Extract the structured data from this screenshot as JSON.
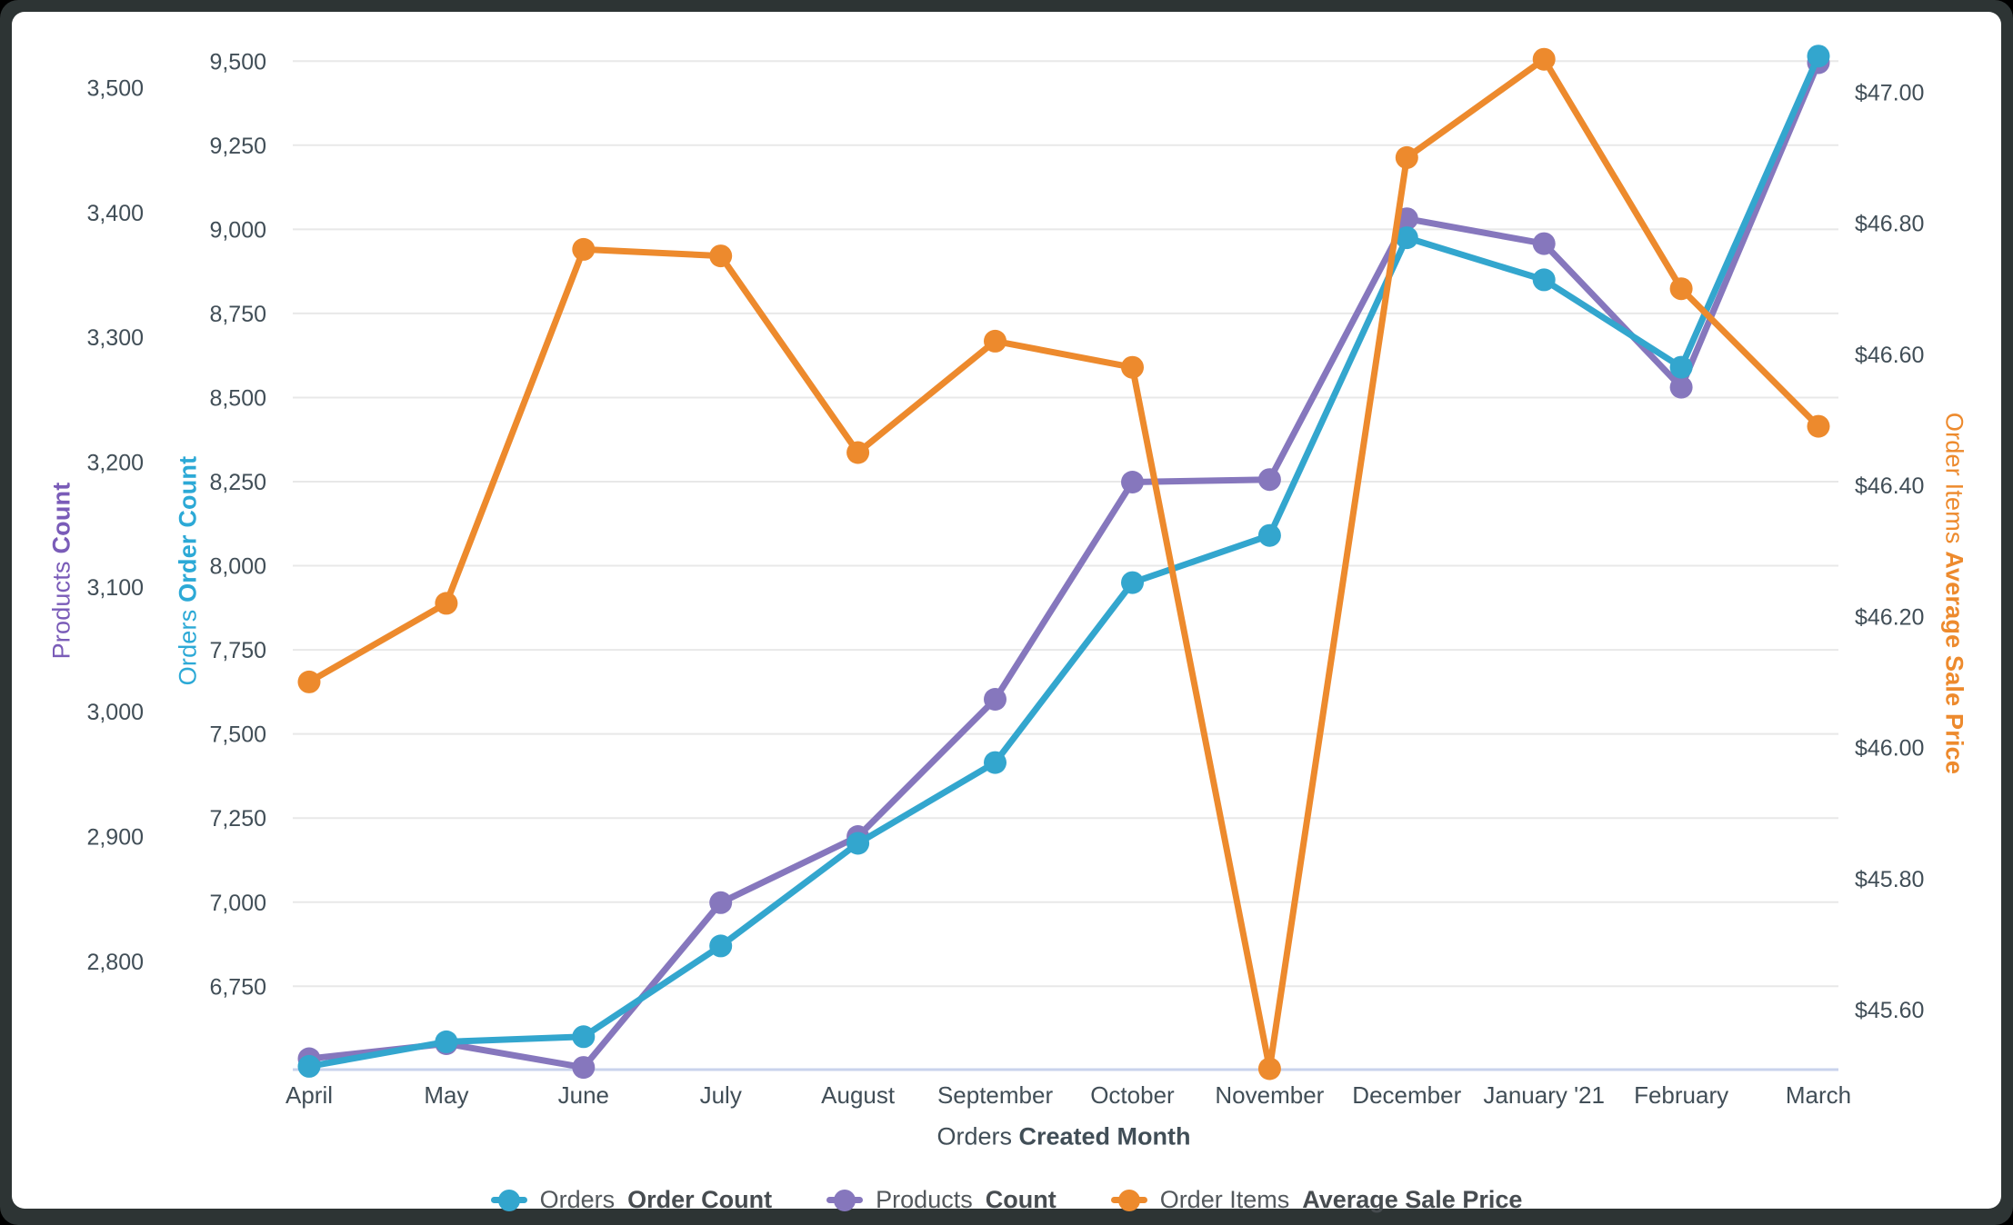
{
  "chart_data": {
    "type": "line",
    "categories": [
      "April",
      "May",
      "June",
      "July",
      "August",
      "September",
      "October",
      "November",
      "December",
      "January '21",
      "February",
      "March"
    ],
    "x_axis_title_regular": "Orders",
    "x_axis_title_bold": "Created Month",
    "grid": "on",
    "legend_position": "bottom-center",
    "series": [
      {
        "name": "Products Count",
        "label_regular": "Products",
        "label_bold": "Count",
        "axis": "products",
        "color": "#8677bd",
        "values": [
          2722,
          2734,
          2715,
          2847,
          2900,
          3010,
          3184,
          3186,
          3395,
          3375,
          3260,
          3520
        ]
      },
      {
        "name": "Orders Order Count",
        "label_regular": "Orders",
        "label_bold": "Order Count",
        "axis": "orders",
        "color": "#33a6ce",
        "values": [
          6512,
          6585,
          6600,
          6870,
          7175,
          7415,
          7950,
          8090,
          8975,
          8850,
          8590,
          9515
        ]
      },
      {
        "name": "Order Items Average Sale Price",
        "label_regular": "Order Items",
        "label_bold": "Average Sale Price",
        "axis": "price",
        "color": "#ed8a2d",
        "values": [
          46.1,
          46.22,
          46.76,
          46.75,
          46.45,
          46.62,
          46.58,
          45.51,
          46.9,
          47.05,
          46.7,
          46.49
        ]
      }
    ],
    "axes": {
      "products": {
        "title_regular": "Products",
        "title_bold": "Count",
        "title_color": "#7a5cb8",
        "side": "left-outer",
        "range": [
          2714,
          3528
        ],
        "ticks": [
          2800,
          2900,
          3000,
          3100,
          3200,
          3300,
          3400,
          3500
        ],
        "tick_labels": [
          "2,800",
          "2,900",
          "3,000",
          "3,100",
          "3,200",
          "3,300",
          "3,400",
          "3,500"
        ]
      },
      "orders": {
        "title_regular": "Orders",
        "title_bold": "Order Count",
        "title_color": "#2ca9d6",
        "side": "left-inner",
        "range": [
          6505,
          9525
        ],
        "ticks": [
          6750,
          7000,
          7250,
          7500,
          7750,
          8000,
          8250,
          8500,
          8750,
          9000,
          9250,
          9500
        ],
        "tick_labels": [
          "6,750",
          "7,000",
          "7,250",
          "7,500",
          "7,750",
          "8,000",
          "8,250",
          "8,500",
          "8,750",
          "9,000",
          "9,250",
          "9,500"
        ]
      },
      "price": {
        "title_regular": "Order Items",
        "title_bold": "Average Sale Price",
        "title_color": "#ed8a2d",
        "side": "right",
        "range": [
          45.51,
          47.06
        ],
        "ticks": [
          45.6,
          45.8,
          46.0,
          46.2,
          46.4,
          46.6,
          46.8,
          47.0
        ],
        "tick_labels": [
          "$45.60",
          "$45.80",
          "$46.00",
          "$46.20",
          "$46.40",
          "$46.60",
          "$46.80",
          "$47.00"
        ]
      }
    },
    "colors": {
      "gridline": "#e8e8e8",
      "baseline": "#c9d3ec",
      "tick_text": "#414e57"
    }
  }
}
